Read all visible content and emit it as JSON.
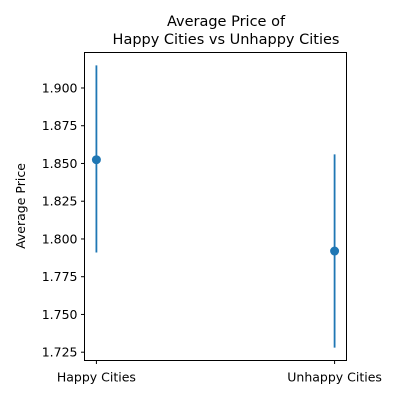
{
  "chart_data": {
    "type": "errorbar",
    "title_lines": [
      "Average Price of",
      "Happy Cities vs Unhappy Cities"
    ],
    "xlabel": "",
    "ylabel": "Average Price",
    "categories": [
      "Happy Cities",
      "Unhappy Cities"
    ],
    "series": [
      {
        "values": [
          1.8525,
          1.792
        ],
        "lower": [
          1.791,
          1.728
        ],
        "upper": [
          1.915,
          1.856
        ]
      }
    ],
    "ylim": [
      1.7195,
      1.9235
    ],
    "y_ticks": [
      1.725,
      1.75,
      1.775,
      1.8,
      1.825,
      1.85,
      1.875,
      1.9
    ],
    "y_tick_labels": [
      "1.725",
      "1.750",
      "1.775",
      "1.800",
      "1.825",
      "1.850",
      "1.875",
      "1.900"
    ],
    "grid": false,
    "legend": "none",
    "color": "#1f77b4"
  }
}
